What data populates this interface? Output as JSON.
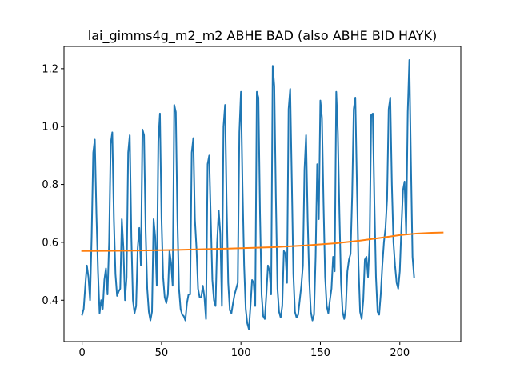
{
  "chart_data": {
    "type": "line",
    "title": "lai_gimms4g_m2_m2 ABHE BAD (also ABHE BID HAYK)",
    "xlabel": "",
    "ylabel": "",
    "xlim": [
      -11.4,
      238.4
    ],
    "ylim": [
      0.257,
      1.277
    ],
    "xticks": [
      0,
      50,
      100,
      150,
      200
    ],
    "xtick_labels": [
      "0",
      "50",
      "100",
      "150",
      "200"
    ],
    "yticks": [
      0.4,
      0.6,
      0.8,
      1.0,
      1.2
    ],
    "ytick_labels": [
      "0.4",
      "0.6",
      "0.8",
      "1.0",
      "1.2"
    ],
    "grid": false,
    "legend": "none",
    "series": [
      {
        "color": "#1f77b4",
        "points": [
          [
            0,
            0.35
          ],
          [
            1,
            0.37
          ],
          [
            2,
            0.45
          ],
          [
            3,
            0.52
          ],
          [
            4,
            0.48
          ],
          [
            5,
            0.4
          ],
          [
            6,
            0.62
          ],
          [
            7,
            0.91
          ],
          [
            8,
            0.955
          ],
          [
            9,
            0.7
          ],
          [
            10,
            0.5
          ],
          [
            11,
            0.355
          ],
          [
            12,
            0.4
          ],
          [
            13,
            0.37
          ],
          [
            14,
            0.47
          ],
          [
            15,
            0.51
          ],
          [
            16,
            0.42
          ],
          [
            17,
            0.6
          ],
          [
            18,
            0.94
          ],
          [
            19,
            0.98
          ],
          [
            20,
            0.68
          ],
          [
            21,
            0.49
          ],
          [
            22,
            0.415
          ],
          [
            23,
            0.43
          ],
          [
            24,
            0.44
          ],
          [
            25,
            0.68
          ],
          [
            26,
            0.58
          ],
          [
            27,
            0.4
          ],
          [
            28,
            0.48
          ],
          [
            29,
            0.91
          ],
          [
            30,
            0.97
          ],
          [
            31,
            0.62
          ],
          [
            32,
            0.4
          ],
          [
            33,
            0.355
          ],
          [
            34,
            0.38
          ],
          [
            35,
            0.58
          ],
          [
            36,
            0.65
          ],
          [
            37,
            0.52
          ],
          [
            38,
            0.99
          ],
          [
            39,
            0.97
          ],
          [
            40,
            0.64
          ],
          [
            41,
            0.44
          ],
          [
            42,
            0.36
          ],
          [
            43,
            0.33
          ],
          [
            44,
            0.36
          ],
          [
            45,
            0.68
          ],
          [
            46,
            0.62
          ],
          [
            47,
            0.45
          ],
          [
            48,
            0.95
          ],
          [
            49,
            1.045
          ],
          [
            50,
            0.68
          ],
          [
            51,
            0.48
          ],
          [
            52,
            0.41
          ],
          [
            53,
            0.39
          ],
          [
            54,
            0.42
          ],
          [
            55,
            0.57
          ],
          [
            56,
            0.53
          ],
          [
            57,
            0.45
          ],
          [
            58,
            1.075
          ],
          [
            59,
            1.05
          ],
          [
            60,
            0.68
          ],
          [
            61,
            0.44
          ],
          [
            62,
            0.37
          ],
          [
            63,
            0.35
          ],
          [
            64,
            0.345
          ],
          [
            65,
            0.33
          ],
          [
            66,
            0.39
          ],
          [
            67,
            0.42
          ],
          [
            68,
            0.42
          ],
          [
            69,
            0.91
          ],
          [
            70,
            0.96
          ],
          [
            71,
            0.68
          ],
          [
            72,
            0.58
          ],
          [
            73,
            0.44
          ],
          [
            74,
            0.41
          ],
          [
            75,
            0.41
          ],
          [
            76,
            0.45
          ],
          [
            77,
            0.41
          ],
          [
            78,
            0.335
          ],
          [
            79,
            0.87
          ],
          [
            80,
            0.9
          ],
          [
            81,
            0.68
          ],
          [
            82,
            0.47
          ],
          [
            83,
            0.4
          ],
          [
            84,
            0.38
          ],
          [
            85,
            0.6
          ],
          [
            86,
            0.71
          ],
          [
            87,
            0.63
          ],
          [
            88,
            0.38
          ],
          [
            89,
            1.0
          ],
          [
            90,
            1.075
          ],
          [
            91,
            0.73
          ],
          [
            92,
            0.46
          ],
          [
            93,
            0.365
          ],
          [
            94,
            0.355
          ],
          [
            95,
            0.39
          ],
          [
            96,
            0.42
          ],
          [
            97,
            0.44
          ],
          [
            98,
            0.46
          ],
          [
            99,
            0.98
          ],
          [
            100,
            1.12
          ],
          [
            101,
            0.79
          ],
          [
            102,
            0.52
          ],
          [
            103,
            0.37
          ],
          [
            104,
            0.32
          ],
          [
            105,
            0.3
          ],
          [
            106,
            0.38
          ],
          [
            107,
            0.47
          ],
          [
            108,
            0.46
          ],
          [
            109,
            0.38
          ],
          [
            110,
            1.12
          ],
          [
            111,
            1.1
          ],
          [
            112,
            0.7
          ],
          [
            113,
            0.42
          ],
          [
            114,
            0.345
          ],
          [
            115,
            0.335
          ],
          [
            116,
            0.42
          ],
          [
            117,
            0.52
          ],
          [
            118,
            0.5
          ],
          [
            119,
            0.42
          ],
          [
            120,
            1.21
          ],
          [
            121,
            1.14
          ],
          [
            122,
            0.75
          ],
          [
            123,
            0.44
          ],
          [
            124,
            0.36
          ],
          [
            125,
            0.34
          ],
          [
            126,
            0.38
          ],
          [
            127,
            0.57
          ],
          [
            128,
            0.56
          ],
          [
            129,
            0.46
          ],
          [
            130,
            1.06
          ],
          [
            131,
            1.13
          ],
          [
            132,
            0.82
          ],
          [
            133,
            0.49
          ],
          [
            134,
            0.36
          ],
          [
            135,
            0.34
          ],
          [
            136,
            0.35
          ],
          [
            137,
            0.4
          ],
          [
            138,
            0.45
          ],
          [
            139,
            0.52
          ],
          [
            140,
            0.85
          ],
          [
            141,
            0.97
          ],
          [
            142,
            0.68
          ],
          [
            143,
            0.47
          ],
          [
            144,
            0.36
          ],
          [
            145,
            0.33
          ],
          [
            146,
            0.35
          ],
          [
            147,
            0.55
          ],
          [
            148,
            0.87
          ],
          [
            149,
            0.68
          ],
          [
            150,
            1.09
          ],
          [
            151,
            1.03
          ],
          [
            152,
            0.73
          ],
          [
            153,
            0.48
          ],
          [
            154,
            0.38
          ],
          [
            155,
            0.355
          ],
          [
            156,
            0.4
          ],
          [
            157,
            0.44
          ],
          [
            158,
            0.55
          ],
          [
            159,
            0.5
          ],
          [
            160,
            1.12
          ],
          [
            161,
            0.98
          ],
          [
            162,
            0.7
          ],
          [
            163,
            0.46
          ],
          [
            164,
            0.36
          ],
          [
            165,
            0.335
          ],
          [
            166,
            0.37
          ],
          [
            167,
            0.5
          ],
          [
            168,
            0.54
          ],
          [
            169,
            0.56
          ],
          [
            170,
            0.76
          ],
          [
            171,
            1.06
          ],
          [
            172,
            1.1
          ],
          [
            173,
            0.8
          ],
          [
            174,
            0.52
          ],
          [
            175,
            0.36
          ],
          [
            176,
            0.335
          ],
          [
            177,
            0.4
          ],
          [
            178,
            0.54
          ],
          [
            179,
            0.55
          ],
          [
            180,
            0.48
          ],
          [
            181,
            0.6
          ],
          [
            182,
            1.04
          ],
          [
            183,
            1.045
          ],
          [
            184,
            0.74
          ],
          [
            185,
            0.48
          ],
          [
            186,
            0.36
          ],
          [
            187,
            0.35
          ],
          [
            188,
            0.42
          ],
          [
            189,
            0.52
          ],
          [
            190,
            0.6
          ],
          [
            191,
            0.65
          ],
          [
            192,
            0.75
          ],
          [
            193,
            1.06
          ],
          [
            194,
            1.1
          ],
          [
            195,
            0.8
          ],
          [
            196,
            0.6
          ],
          [
            197,
            0.52
          ],
          [
            198,
            0.46
          ],
          [
            199,
            0.44
          ],
          [
            200,
            0.5
          ],
          [
            201,
            0.65
          ],
          [
            202,
            0.78
          ],
          [
            203,
            0.81
          ],
          [
            204,
            0.63
          ],
          [
            205,
            1.05
          ],
          [
            206,
            1.23
          ],
          [
            207,
            0.88
          ],
          [
            208,
            0.55
          ],
          [
            209,
            0.48
          ]
        ]
      },
      {
        "color": "#ff7f0e",
        "points": [
          [
            0,
            0.57
          ],
          [
            30,
            0.571
          ],
          [
            60,
            0.574
          ],
          [
            90,
            0.578
          ],
          [
            120,
            0.583
          ],
          [
            140,
            0.589
          ],
          [
            160,
            0.597
          ],
          [
            175,
            0.606
          ],
          [
            190,
            0.617
          ],
          [
            200,
            0.625
          ],
          [
            210,
            0.63
          ],
          [
            220,
            0.633
          ],
          [
            227,
            0.634
          ]
        ]
      }
    ]
  }
}
